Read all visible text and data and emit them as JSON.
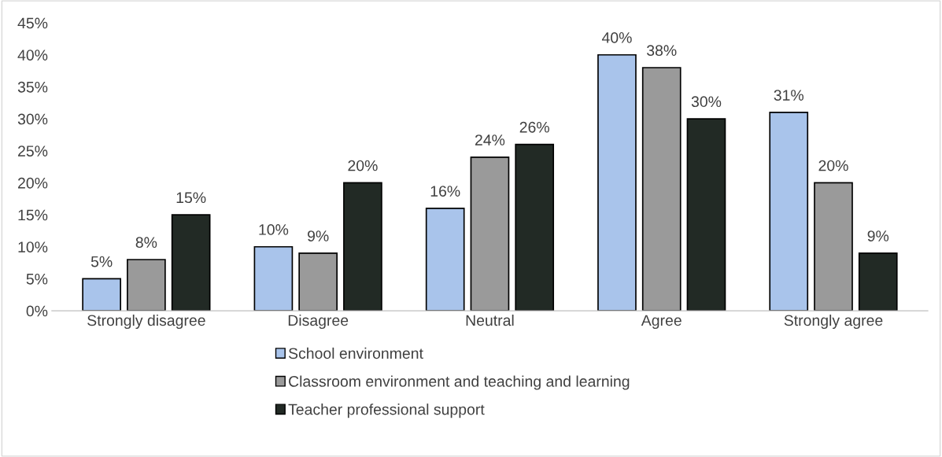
{
  "chart_data": {
    "type": "bar",
    "categories": [
      "Strongly disagree",
      "Disagree",
      "Neutral",
      "Agree",
      "Strongly agree"
    ],
    "series": [
      {
        "name": "School environment",
        "color": "#a9c4eb",
        "values": [
          5,
          10,
          16,
          40,
          31
        ],
        "value_labels": [
          "5%",
          "10%",
          "16%",
          "40%",
          "31%"
        ]
      },
      {
        "name": "Classroom environment and teaching and learning",
        "color": "#9a9a9a",
        "values": [
          8,
          9,
          24,
          38,
          20
        ],
        "value_labels": [
          "8%",
          "9%",
          "24%",
          "38%",
          "20%"
        ]
      },
      {
        "name": "Teacher professional support",
        "color": "#222a25",
        "values": [
          15,
          20,
          26,
          30,
          9
        ],
        "value_labels": [
          "15%",
          "20%",
          "26%",
          "30%",
          "9%"
        ]
      }
    ],
    "ylim": [
      0,
      45
    ],
    "yticks": [
      {
        "value": 0,
        "label": "0%"
      },
      {
        "value": 5,
        "label": "5%"
      },
      {
        "value": 10,
        "label": "10%"
      },
      {
        "value": 15,
        "label": "15%"
      },
      {
        "value": 20,
        "label": "20%"
      },
      {
        "value": 25,
        "label": "25%"
      },
      {
        "value": 30,
        "label": "30%"
      },
      {
        "value": 35,
        "label": "35%"
      },
      {
        "value": 40,
        "label": "40%"
      },
      {
        "value": 45,
        "label": "45%"
      }
    ],
    "grid": false,
    "legend": "bottom"
  }
}
